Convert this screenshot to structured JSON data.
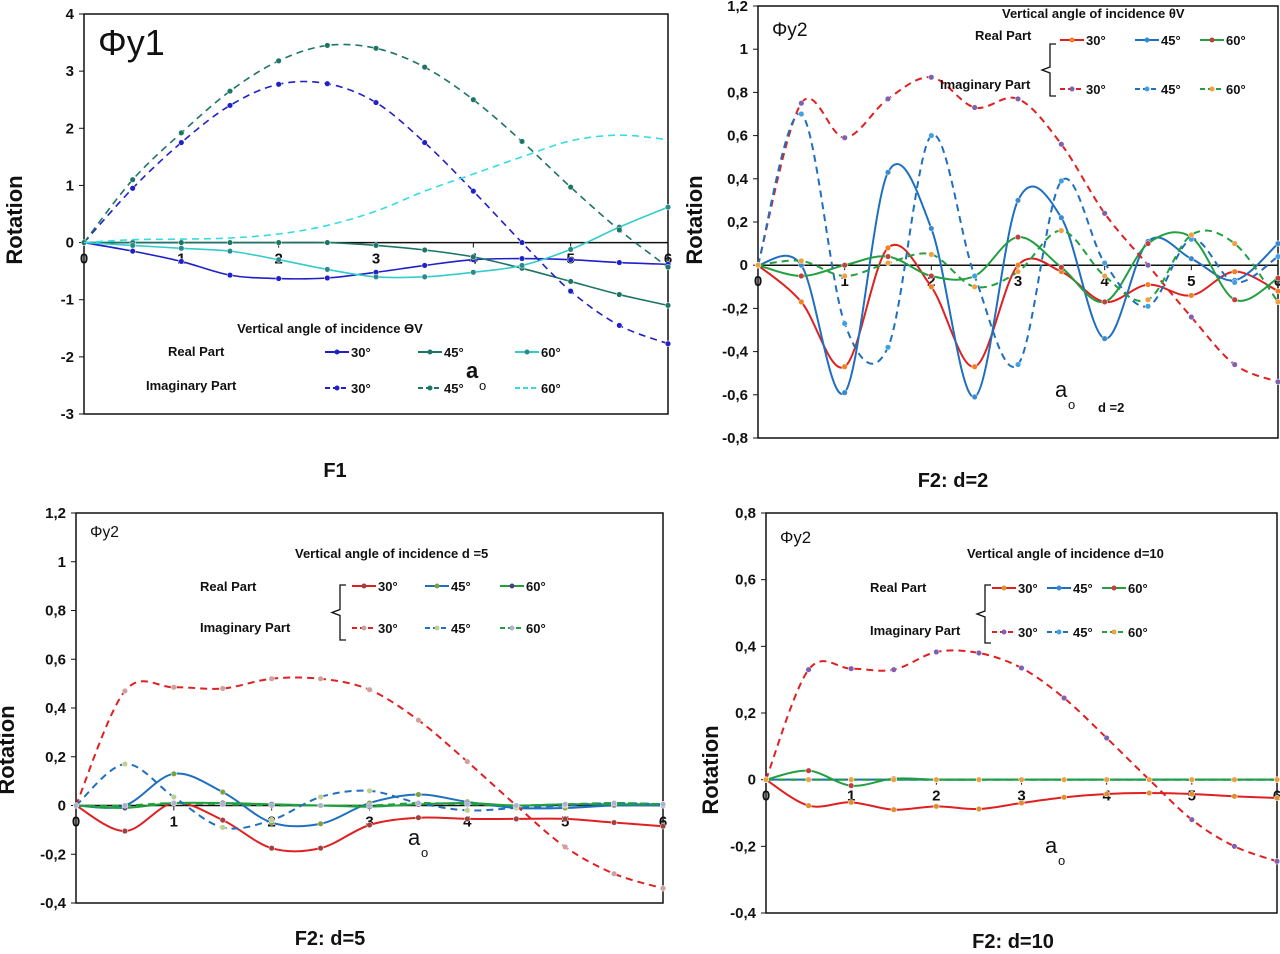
{
  "chart_data": [
    {
      "type": "line",
      "caption": "F1",
      "phi_label": "Φy1",
      "ylabel": "Rotation",
      "xlabel": "a",
      "xlabel_sub": "o",
      "xlim": [
        0,
        6
      ],
      "ylim": [
        -3,
        4
      ],
      "xticks": [
        "0",
        "1",
        "2",
        "3",
        "4",
        "5",
        "6"
      ],
      "yticks": [
        -3,
        -2,
        -1,
        0,
        1,
        2,
        3,
        4
      ],
      "ytick_labels": [
        "-3",
        "-2",
        "-1",
        "0",
        "1",
        "2",
        "3",
        "4"
      ],
      "legend_title": "Vertical angle of incidence ϴV",
      "real_label": "Real Part",
      "imag_label": "Imaginary Part",
      "note": "",
      "x": [
        0,
        0.5,
        1,
        1.5,
        2,
        2.5,
        3,
        3.5,
        4,
        4.5,
        5,
        5.5,
        6
      ],
      "series": [
        {
          "name": "30°",
          "part": "real",
          "color": "#2020c8",
          "marker": "#2020c8",
          "dashed": false,
          "values": [
            0,
            -0.15,
            -0.33,
            -0.57,
            -0.63,
            -0.62,
            -0.52,
            -0.4,
            -0.3,
            -0.28,
            -0.3,
            -0.35,
            -0.38
          ]
        },
        {
          "name": "45°",
          "part": "real",
          "color": "#1d7566",
          "marker": "#1d7566",
          "dashed": false,
          "values": [
            0,
            0,
            0,
            0,
            0,
            0,
            -0.05,
            -0.13,
            -0.25,
            -0.45,
            -0.68,
            -0.91,
            -1.1
          ]
        },
        {
          "name": "60°",
          "part": "real",
          "color": "#33cccc",
          "marker": "#2a8a8a",
          "dashed": false,
          "values": [
            0,
            -0.05,
            -0.1,
            -0.15,
            -0.3,
            -0.47,
            -0.6,
            -0.6,
            -0.52,
            -0.4,
            -0.12,
            0.27,
            0.62
          ]
        },
        {
          "name": "30°",
          "part": "imag",
          "color": "#2020c8",
          "marker": "#2020c8",
          "dashed": true,
          "values": [
            0,
            0.95,
            1.75,
            2.4,
            2.77,
            2.78,
            2.45,
            1.75,
            0.9,
            0,
            -0.85,
            -1.45,
            -1.77
          ]
        },
        {
          "name": "45°",
          "part": "imag",
          "color": "#1d7566",
          "marker": "#1d7566",
          "dashed": true,
          "values": [
            0,
            1.1,
            1.92,
            2.65,
            3.18,
            3.45,
            3.4,
            3.07,
            2.5,
            1.77,
            0.97,
            0.22,
            -0.43
          ]
        },
        {
          "name": "60°",
          "part": "imag",
          "color": "#33dddd",
          "marker": "none",
          "dashed": true,
          "values": [
            0,
            0.05,
            0.06,
            0.08,
            0.15,
            0.3,
            0.55,
            0.9,
            1.2,
            1.5,
            1.78,
            1.88,
            1.8
          ]
        }
      ]
    },
    {
      "type": "line",
      "caption": "F2: d=2",
      "phi_label": "Φy2",
      "ylabel": "Rotation",
      "xlabel": "a",
      "xlabel_sub": "o",
      "xlim": [
        0,
        6
      ],
      "ylim": [
        -0.8,
        1.2
      ],
      "xticks": [
        "0",
        "1",
        "2",
        "3",
        "4",
        "5",
        "6"
      ],
      "yticks": [
        -0.8,
        -0.6,
        -0.4,
        -0.2,
        0,
        0.2,
        0.4,
        0.6,
        0.8,
        1,
        1.2
      ],
      "ytick_labels": [
        "-0,8",
        "-0,6",
        "-0,4",
        "-0,2",
        "0",
        "0,2",
        "0,4",
        "0,6",
        "0,8",
        "1",
        "1,2"
      ],
      "legend_title": "Vertical angle of incidence θV",
      "real_label": "Real Part",
      "imag_label": "Imaginary Part",
      "note": "d =2",
      "x": [
        0,
        0.5,
        1,
        1.5,
        2,
        2.5,
        3,
        3.5,
        4,
        4.5,
        5,
        5.5,
        6
      ],
      "series": [
        {
          "name": "30°",
          "part": "real",
          "color": "#e02020",
          "marker": "#f08020",
          "dashed": false,
          "values": [
            0,
            -0.17,
            -0.47,
            0.08,
            -0.1,
            -0.47,
            0,
            -0.03,
            -0.17,
            -0.09,
            -0.14,
            -0.03,
            -0.12
          ]
        },
        {
          "name": "45°",
          "part": "real",
          "color": "#1f6fbf",
          "marker": "#3a8ad0",
          "dashed": false,
          "values": [
            0,
            0,
            -0.59,
            0.43,
            0.17,
            -0.61,
            0.3,
            0.22,
            -0.34,
            0.11,
            0.03,
            -0.07,
            0.1
          ]
        },
        {
          "name": "60°",
          "part": "real",
          "color": "#22a040",
          "marker": "#c04040",
          "dashed": false,
          "values": [
            0,
            -0.05,
            0,
            0.04,
            -0.05,
            -0.05,
            0.13,
            -0.01,
            -0.17,
            0.1,
            0.13,
            -0.16,
            -0.06
          ]
        },
        {
          "name": "30°",
          "part": "imag",
          "color": "#e02020",
          "marker": "#8060b0",
          "dashed": true,
          "values": [
            0,
            0.75,
            0.59,
            0.77,
            0.87,
            0.73,
            0.77,
            0.56,
            0.24,
            0,
            -0.24,
            -0.46,
            -0.54
          ]
        },
        {
          "name": "45°",
          "part": "imag",
          "color": "#1f6fbf",
          "marker": "#40a0e0",
          "dashed": true,
          "values": [
            0,
            0.7,
            -0.27,
            -0.38,
            0.6,
            -0.05,
            -0.46,
            0.39,
            0.01,
            -0.19,
            0.12,
            -0.08,
            0.04
          ]
        },
        {
          "name": "60°",
          "part": "imag",
          "color": "#22a040",
          "marker": "#f0a040",
          "dashed": true,
          "values": [
            0,
            0.02,
            -0.05,
            0.01,
            0.05,
            -0.1,
            -0.03,
            0.16,
            -0.05,
            -0.16,
            0.14,
            0.1,
            -0.17
          ]
        }
      ]
    },
    {
      "type": "line",
      "caption": "F2: d=5",
      "phi_label": "Φy2",
      "ylabel": "Rotation",
      "xlabel": "a",
      "xlabel_sub": "o",
      "xlim": [
        0,
        6
      ],
      "ylim": [
        -0.4,
        1.2
      ],
      "xticks": [
        "0",
        "1",
        "2",
        "3",
        "4",
        "5",
        "6"
      ],
      "yticks": [
        -0.4,
        -0.2,
        0,
        0.2,
        0.4,
        0.6,
        0.8,
        1,
        1.2
      ],
      "ytick_labels": [
        "-0,4",
        "-0,2",
        "0",
        "0,2",
        "0,4",
        "0,6",
        "0,8",
        "1",
        "1,2"
      ],
      "legend_title": "Vertical angle of incidence    d =5",
      "real_label": "Real Part",
      "imag_label": "Imaginary Part",
      "note": "",
      "x": [
        0,
        0.5,
        1,
        1.5,
        2,
        2.5,
        3,
        3.5,
        4,
        4.5,
        5,
        5.5,
        6
      ],
      "series": [
        {
          "name": "30°",
          "part": "real",
          "color": "#e02020",
          "marker": "#a04040",
          "dashed": false,
          "values": [
            0,
            -0.105,
            0.01,
            -0.06,
            -0.175,
            -0.175,
            -0.08,
            -0.05,
            -0.055,
            -0.055,
            -0.055,
            -0.07,
            -0.085
          ]
        },
        {
          "name": "45°",
          "part": "real",
          "color": "#1f6fbf",
          "marker": "#80a040",
          "dashed": false,
          "values": [
            0,
            0,
            0.13,
            0.055,
            -0.07,
            -0.075,
            0.01,
            0.045,
            0.015,
            -0.01,
            -0.01,
            0,
            0
          ]
        },
        {
          "name": "60°",
          "part": "real",
          "color": "#22a040",
          "marker": "#504080",
          "dashed": false,
          "values": [
            0,
            -0.01,
            0.01,
            0.01,
            0.005,
            0,
            -0.005,
            0.005,
            0.01,
            0,
            0.005,
            0.005,
            0.005
          ]
        },
        {
          "name": "30°",
          "part": "imag",
          "color": "#e02020",
          "marker": "#d0a0a0",
          "dashed": true,
          "values": [
            0,
            0.47,
            0.485,
            0.48,
            0.52,
            0.52,
            0.475,
            0.35,
            0.18,
            0,
            -0.17,
            -0.28,
            -0.34
          ]
        },
        {
          "name": "45°",
          "part": "imag",
          "color": "#1f6fbf",
          "marker": "#c0d090",
          "dashed": true,
          "values": [
            0,
            0.17,
            0.035,
            -0.09,
            -0.06,
            0.035,
            0.06,
            0.01,
            -0.02,
            -0.01,
            0,
            0.01,
            0.005
          ]
        },
        {
          "name": "60°",
          "part": "imag",
          "color": "#22a040",
          "marker": "#b0b0d0",
          "dashed": true,
          "values": [
            0,
            0,
            0.01,
            0.005,
            0,
            0,
            0,
            0.01,
            0.005,
            0,
            0.005,
            0.01,
            0.005
          ]
        }
      ]
    },
    {
      "type": "line",
      "caption": "F2: d=10",
      "phi_label": "Φy2",
      "ylabel": "Rotation",
      "xlabel": "a",
      "xlabel_sub": "o",
      "xlim": [
        0,
        6
      ],
      "ylim": [
        -0.4,
        0.8
      ],
      "xticks": [
        "0",
        "1",
        "2",
        "3",
        "4",
        "5",
        "6"
      ],
      "yticks": [
        -0.4,
        -0.2,
        0,
        0.2,
        0.4,
        0.6,
        0.8
      ],
      "ytick_labels": [
        "-0,4",
        "-0,2",
        "0",
        "0,2",
        "0,4",
        "0,6",
        "0,8"
      ],
      "legend_title": "Vertical angle of incidence    d=10",
      "real_label": "Real Part",
      "imag_label": "Imaginary Part",
      "note": "",
      "x": [
        0,
        0.5,
        1,
        1.5,
        2,
        2.5,
        3,
        3.5,
        4,
        4.5,
        5,
        5.5,
        6
      ],
      "series": [
        {
          "name": "30°",
          "part": "real",
          "color": "#e02020",
          "marker": "#e09030",
          "dashed": false,
          "values": [
            0,
            -0.078,
            -0.068,
            -0.09,
            -0.08,
            -0.088,
            -0.07,
            -0.053,
            -0.043,
            -0.04,
            -0.043,
            -0.05,
            -0.055
          ]
        },
        {
          "name": "45°",
          "part": "real",
          "color": "#1f6fbf",
          "marker": "#3a8ad0",
          "dashed": false,
          "values": [
            0,
            0,
            0,
            0,
            0,
            0,
            0,
            0,
            0,
            0,
            0,
            0,
            0
          ]
        },
        {
          "name": "60°",
          "part": "real",
          "color": "#22a040",
          "marker": "#c04040",
          "dashed": false,
          "values": [
            0,
            0.027,
            -0.018,
            0.003,
            0,
            0,
            0,
            0,
            0,
            0,
            0,
            0,
            0
          ]
        },
        {
          "name": "30°",
          "part": "imag",
          "color": "#e02020",
          "marker": "#8060b0",
          "dashed": true,
          "values": [
            0,
            0.33,
            0.333,
            0.33,
            0.383,
            0.38,
            0.335,
            0.245,
            0.125,
            0,
            -0.12,
            -0.2,
            -0.245
          ]
        },
        {
          "name": "45°",
          "part": "imag",
          "color": "#1f6fbf",
          "marker": "#40a0e0",
          "dashed": true,
          "values": [
            0,
            0,
            0,
            0,
            0,
            0,
            0,
            0,
            0,
            0,
            0,
            0,
            0
          ]
        },
        {
          "name": "60°",
          "part": "imag",
          "color": "#22a040",
          "marker": "#f0a040",
          "dashed": true,
          "values": [
            0,
            0,
            0,
            0,
            0,
            0,
            0,
            0,
            0,
            0,
            0,
            0,
            0
          ]
        }
      ]
    }
  ]
}
